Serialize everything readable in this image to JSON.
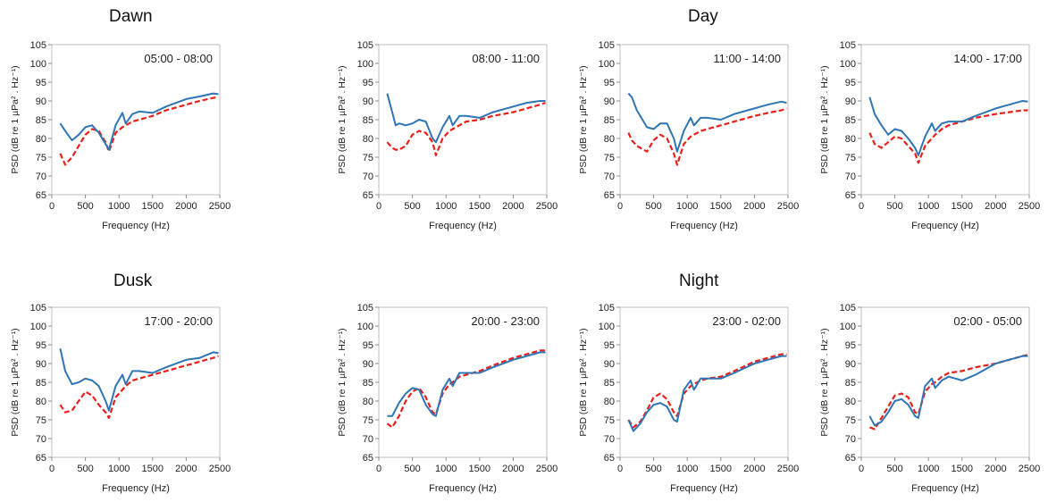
{
  "group_titles": [
    {
      "text": "Dawn"
    },
    {
      "text": "Day"
    },
    {
      "text": "Dusk"
    },
    {
      "text": "Night"
    }
  ],
  "axis": {
    "xlabel": "Frequency (Hz)",
    "ylabel": "PSD (dB re 1 µPa² . Hz⁻¹)",
    "xticks": [
      0,
      500,
      1000,
      1500,
      2000,
      2500
    ],
    "yticks": [
      65,
      70,
      75,
      80,
      85,
      90,
      95,
      100,
      105
    ],
    "xlim": [
      0,
      2500
    ],
    "ylim": [
      65,
      105
    ]
  },
  "series_styles": [
    {
      "color": "#2e75b6",
      "dash": "solid"
    },
    {
      "color": "#e8201a",
      "dash": "dashed"
    }
  ],
  "chart_data": [
    {
      "type": "line",
      "title": "05:00 - 08:00",
      "xlabel": "Frequency (Hz)",
      "ylabel": "PSD (dB re 1 µPa² . Hz⁻¹)",
      "xlim": [
        0,
        2500
      ],
      "ylim": [
        65,
        105
      ],
      "grid": false,
      "x": [
        125,
        200,
        300,
        400,
        500,
        600,
        700,
        800,
        850,
        950,
        1050,
        1100,
        1200,
        1300,
        1500,
        1700,
        2000,
        2200,
        2400,
        2480
      ],
      "series": [
        {
          "values": [
            84.0,
            82.0,
            79.5,
            81.0,
            83.0,
            83.5,
            81.5,
            78.5,
            77.0,
            83.5,
            86.8,
            84.0,
            86.5,
            87.2,
            86.8,
            88.5,
            90.5,
            91.2,
            92.0,
            91.8
          ]
        },
        {
          "values": [
            76.0,
            73.0,
            75.0,
            78.0,
            81.0,
            82.5,
            82.0,
            79.0,
            76.5,
            81.5,
            83.0,
            83.5,
            84.5,
            85.0,
            86.0,
            87.5,
            89.0,
            90.0,
            90.8,
            91.0
          ]
        }
      ]
    },
    {
      "type": "line",
      "title": "08:00 - 11:00",
      "xlabel": "Frequency (Hz)",
      "ylabel": "PSD (dB re 1 µPa² . Hz⁻¹)",
      "xlim": [
        0,
        2500
      ],
      "ylim": [
        65,
        105
      ],
      "grid": false,
      "x": [
        125,
        200,
        250,
        300,
        400,
        500,
        600,
        700,
        800,
        850,
        950,
        1050,
        1100,
        1200,
        1300,
        1500,
        1700,
        2000,
        2200,
        2400,
        2480
      ],
      "series": [
        {
          "values": [
            92.0,
            87.0,
            83.5,
            84.0,
            83.5,
            84.0,
            85.0,
            84.5,
            80.0,
            79.0,
            83.0,
            86.0,
            83.5,
            86.0,
            86.0,
            85.5,
            87.0,
            88.5,
            89.5,
            90.0,
            90.0
          ]
        },
        {
          "values": [
            79.0,
            77.5,
            77.0,
            77.0,
            78.0,
            81.0,
            82.0,
            81.5,
            79.0,
            75.5,
            80.0,
            82.0,
            82.5,
            83.5,
            84.5,
            85.0,
            86.0,
            87.0,
            88.0,
            89.0,
            89.5
          ]
        }
      ]
    },
    {
      "type": "line",
      "title": "11:00 - 14:00",
      "xlabel": "Frequency (Hz)",
      "ylabel": "PSD (dB re 1 µPa² . Hz⁻¹)",
      "xlim": [
        0,
        2500
      ],
      "ylim": [
        65,
        105
      ],
      "grid": false,
      "x": [
        125,
        175,
        250,
        300,
        400,
        500,
        600,
        700,
        800,
        850,
        950,
        1050,
        1100,
        1200,
        1300,
        1500,
        1700,
        2000,
        2200,
        2400,
        2480
      ],
      "series": [
        {
          "values": [
            92.0,
            91.0,
            87.5,
            86.0,
            83.0,
            82.5,
            84.0,
            84.0,
            80.0,
            76.5,
            82.0,
            85.5,
            83.5,
            85.5,
            85.5,
            85.0,
            86.5,
            88.0,
            89.0,
            89.8,
            89.5
          ]
        },
        {
          "values": [
            81.5,
            79.5,
            78.0,
            77.5,
            76.5,
            79.5,
            81.0,
            80.0,
            76.0,
            73.0,
            78.5,
            80.5,
            81.0,
            82.0,
            82.5,
            83.5,
            84.5,
            86.0,
            86.8,
            87.5,
            88.0
          ]
        }
      ]
    },
    {
      "type": "line",
      "title": "14:00 - 17:00",
      "xlabel": "Frequency (Hz)",
      "ylabel": "PSD (dB re 1 µPa² . Hz⁻¹)",
      "xlim": [
        0,
        2500
      ],
      "ylim": [
        65,
        105
      ],
      "grid": false,
      "x": [
        125,
        200,
        300,
        400,
        500,
        600,
        700,
        800,
        850,
        950,
        1050,
        1100,
        1200,
        1300,
        1500,
        1700,
        2000,
        2200,
        2400,
        2480
      ],
      "series": [
        {
          "values": [
            91.0,
            86.5,
            83.5,
            81.0,
            82.5,
            82.0,
            80.0,
            77.5,
            75.5,
            80.5,
            84.0,
            82.0,
            84.0,
            84.5,
            84.5,
            86.0,
            88.0,
            89.0,
            90.0,
            89.8
          ]
        },
        {
          "values": [
            81.5,
            78.5,
            77.5,
            79.0,
            80.5,
            80.0,
            78.0,
            76.0,
            73.5,
            78.0,
            80.0,
            81.0,
            82.5,
            83.5,
            84.5,
            85.5,
            86.5,
            87.0,
            87.5,
            87.5
          ]
        }
      ]
    },
    {
      "type": "line",
      "title": "17:00 - 20:00",
      "xlabel": "Frequency (Hz)",
      "ylabel": "PSD (dB re 1 µPa² . Hz⁻¹)",
      "xlim": [
        0,
        2500
      ],
      "ylim": [
        65,
        105
      ],
      "grid": false,
      "x": [
        125,
        200,
        300,
        400,
        500,
        600,
        700,
        800,
        850,
        950,
        1050,
        1100,
        1200,
        1300,
        1500,
        1700,
        2000,
        2200,
        2400,
        2480
      ],
      "series": [
        {
          "values": [
            94.0,
            88.0,
            84.5,
            85.0,
            86.0,
            85.5,
            84.0,
            80.0,
            77.5,
            84.0,
            87.0,
            84.5,
            88.0,
            88.0,
            87.5,
            89.0,
            91.0,
            91.5,
            93.0,
            92.8
          ]
        },
        {
          "values": [
            79.0,
            77.0,
            77.5,
            80.0,
            82.5,
            81.5,
            79.0,
            77.0,
            75.5,
            81.0,
            83.0,
            84.0,
            85.5,
            86.0,
            87.0,
            88.0,
            89.5,
            90.5,
            91.5,
            92.0
          ]
        }
      ]
    },
    {
      "type": "line",
      "title": "20:00 - 23:00",
      "xlabel": "Frequency (Hz)",
      "ylabel": "PSD (dB re 1 µPa² . Hz⁻¹)",
      "xlim": [
        0,
        2500
      ],
      "ylim": [
        65,
        105
      ],
      "grid": false,
      "x": [
        125,
        200,
        300,
        400,
        500,
        600,
        700,
        800,
        850,
        950,
        1050,
        1100,
        1200,
        1300,
        1500,
        1700,
        2000,
        2200,
        2400,
        2480
      ],
      "series": [
        {
          "values": [
            76.0,
            76.0,
            79.5,
            82.0,
            83.5,
            83.0,
            79.0,
            76.5,
            76.0,
            83.0,
            86.0,
            84.0,
            87.5,
            87.5,
            87.5,
            89.0,
            91.0,
            92.0,
            93.0,
            93.0
          ]
        },
        {
          "values": [
            74.0,
            73.0,
            76.0,
            80.0,
            82.5,
            83.5,
            81.0,
            77.0,
            76.5,
            82.0,
            84.5,
            85.0,
            86.5,
            87.0,
            88.0,
            89.5,
            91.5,
            92.5,
            93.5,
            93.5
          ]
        }
      ]
    },
    {
      "type": "line",
      "title": "23:00 - 02:00",
      "xlabel": "Frequency (Hz)",
      "ylabel": "PSD (dB re 1 µPa² . Hz⁻¹)",
      "xlim": [
        0,
        2500
      ],
      "ylim": [
        65,
        105
      ],
      "grid": false,
      "x": [
        125,
        200,
        300,
        400,
        500,
        600,
        700,
        800,
        850,
        950,
        1050,
        1100,
        1200,
        1300,
        1500,
        1700,
        2000,
        2200,
        2400,
        2480
      ],
      "series": [
        {
          "values": [
            75.0,
            72.0,
            74.0,
            77.0,
            79.0,
            79.5,
            78.5,
            75.0,
            74.5,
            83.0,
            85.5,
            83.0,
            86.0,
            86.0,
            86.0,
            87.5,
            90.0,
            91.0,
            92.0,
            92.0
          ]
        },
        {
          "values": [
            75.0,
            73.0,
            74.5,
            77.5,
            81.0,
            82.0,
            80.5,
            77.0,
            76.0,
            82.0,
            84.0,
            84.5,
            85.5,
            86.0,
            86.5,
            88.0,
            90.5,
            91.5,
            92.5,
            92.5
          ]
        }
      ]
    },
    {
      "type": "line",
      "title": "02:00 - 05:00",
      "xlabel": "Frequency (Hz)",
      "ylabel": "PSD (dB re 1 µPa² . Hz⁻¹)",
      "xlim": [
        0,
        2500
      ],
      "ylim": [
        65,
        105
      ],
      "grid": false,
      "x": [
        125,
        200,
        300,
        400,
        500,
        600,
        700,
        800,
        850,
        950,
        1050,
        1100,
        1200,
        1300,
        1500,
        1700,
        2000,
        2200,
        2400,
        2480
      ],
      "series": [
        {
          "values": [
            76.0,
            73.5,
            74.5,
            77.0,
            80.0,
            80.5,
            79.0,
            76.0,
            75.5,
            84.0,
            86.0,
            83.5,
            85.5,
            86.5,
            85.5,
            87.0,
            90.0,
            91.0,
            92.0,
            92.0
          ]
        },
        {
          "values": [
            73.0,
            72.5,
            75.5,
            78.5,
            81.5,
            82.0,
            81.0,
            77.0,
            76.5,
            82.5,
            84.5,
            85.0,
            86.5,
            87.5,
            88.0,
            89.0,
            90.0,
            91.0,
            92.0,
            92.3
          ]
        }
      ]
    }
  ]
}
